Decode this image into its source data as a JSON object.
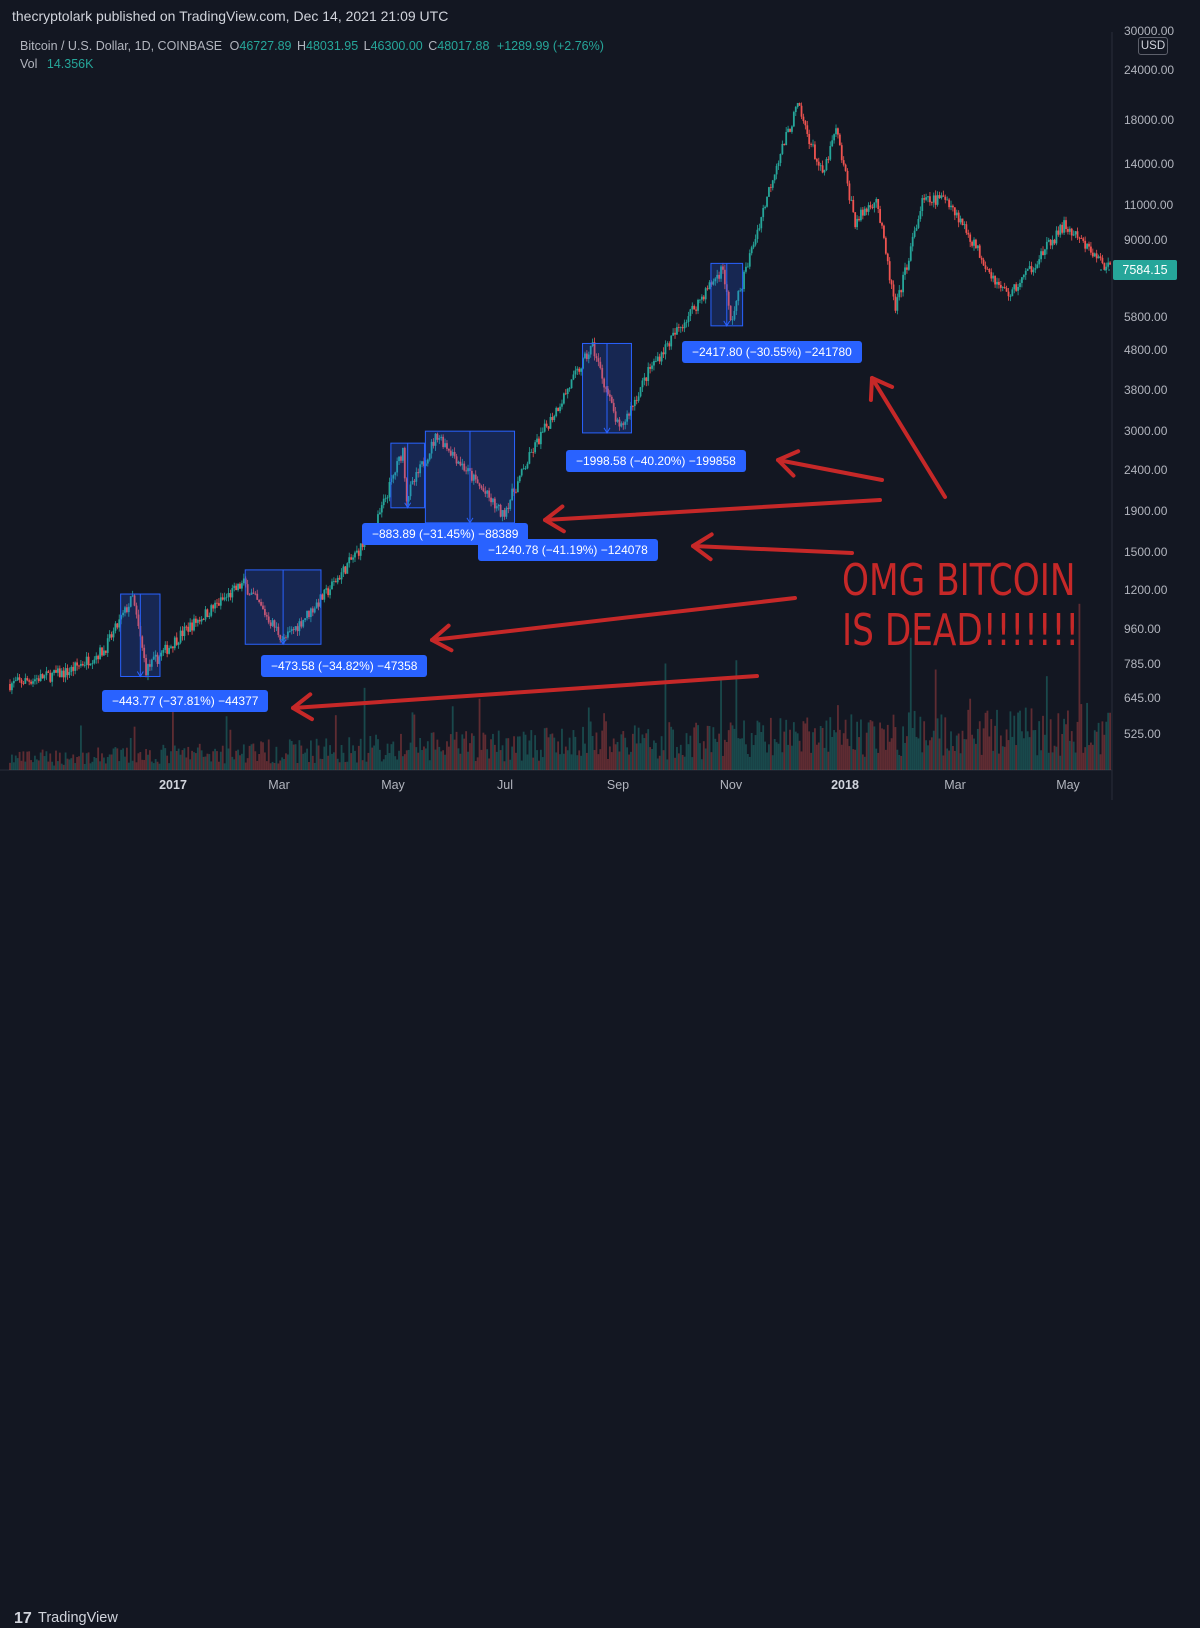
{
  "publisher": "thecryptolark published on TradingView.com, Dec 14, 2021 21:09 UTC",
  "legend": {
    "symbol": "Bitcoin / U.S. Dollar, 1D, COINBASE",
    "o_label": "O",
    "o": "46727.89",
    "h_label": "H",
    "h": "48031.95",
    "l_label": "L",
    "l": "46300.00",
    "c_label": "C",
    "c": "48017.88",
    "change": "+1289.99 (+2.76%)",
    "vol_label": "Vol",
    "vol": "14.356K"
  },
  "currency": "USD",
  "last_price": "7584.15",
  "annotation": {
    "line1": "OMG BITCOIN",
    "line2": "IS DEAD!!!!!!!"
  },
  "footer": {
    "logo": "17",
    "brand": "TradingView"
  },
  "colors": {
    "background": "#131722",
    "up": "#26a69a",
    "down": "#ef5350",
    "measure": "#2962ff",
    "annotation": "#c62828"
  },
  "chart_data": {
    "type": "candlestick",
    "symbol": "Bitcoin / U.S. Dollar",
    "interval": "1D",
    "exchange": "COINBASE",
    "y_scale": "log",
    "x_labels": [
      "2017",
      "Mar",
      "May",
      "Jul",
      "Sep",
      "Nov",
      "2018",
      "Mar",
      "May"
    ],
    "y_ticks": [
      "30000.00",
      "24000.00",
      "18000.00",
      "14000.00",
      "11000.00",
      "9000.00",
      "5800.00",
      "4800.00",
      "3800.00",
      "3000.00",
      "2400.00",
      "1900.00",
      "1500.00",
      "1200.00",
      "960.00",
      "785.00",
      "645.00",
      "525.00"
    ],
    "price_path": [
      [
        "2016-11-01",
        700
      ],
      [
        "2016-12-01",
        750
      ],
      [
        "2016-12-20",
        850
      ],
      [
        "2017-01-04",
        1150
      ],
      [
        "2017-01-11",
        760
      ],
      [
        "2017-02-01",
        960
      ],
      [
        "2017-03-03",
        1250
      ],
      [
        "2017-03-24",
        900
      ],
      [
        "2017-04-15",
        1180
      ],
      [
        "2017-05-10",
        1700
      ],
      [
        "2017-05-25",
        2700
      ],
      [
        "2017-05-27",
        2050
      ],
      [
        "2017-06-12",
        2950
      ],
      [
        "2017-07-16",
        1850
      ],
      [
        "2017-08-01",
        2700
      ],
      [
        "2017-09-01",
        4900
      ],
      [
        "2017-09-15",
        3000
      ],
      [
        "2017-10-01",
        4300
      ],
      [
        "2017-11-08",
        7700
      ],
      [
        "2017-11-12",
        5600
      ],
      [
        "2017-12-06",
        14000
      ],
      [
        "2017-12-17",
        19500
      ],
      [
        "2017-12-30",
        13000
      ],
      [
        "2018-01-06",
        17000
      ],
      [
        "2018-01-16",
        10000
      ],
      [
        "2018-01-27",
        11500
      ],
      [
        "2018-02-06",
        6000
      ],
      [
        "2018-02-20",
        11200
      ],
      [
        "2018-03-05",
        11500
      ],
      [
        "2018-04-01",
        6900
      ],
      [
        "2018-04-07",
        6600
      ],
      [
        "2018-05-05",
        9800
      ],
      [
        "2018-05-29",
        7584.15
      ]
    ],
    "measurements": [
      {
        "label": "−443.77 (−37.81%) −44377",
        "from": [
          "2017-01-04",
          1175
        ],
        "to": [
          "2017-01-12",
          731
        ]
      },
      {
        "label": "−473.58 (−34.82%) −47358",
        "from": [
          "2017-03-10",
          1350
        ],
        "to": [
          "2017-04-06",
          880
        ]
      },
      {
        "label": "−883.89 (−31.45%) −88389",
        "from": [
          "2017-05-25",
          2800
        ],
        "to": [
          "2017-05-30",
          1930
        ]
      },
      {
        "label": "−1240.78 (−41.19%) −124078",
        "from": [
          "2017-06-12",
          3000
        ],
        "to": [
          "2017-07-16",
          1770
        ]
      },
      {
        "label": "−1998.58 (−40.20%) −199858",
        "from": [
          "2017-09-02",
          4970
        ],
        "to": [
          "2017-09-15",
          2970
        ]
      },
      {
        "label": "−2417.80 (−30.55%) −241780",
        "from": [
          "2017-11-08",
          7880
        ],
        "to": [
          "2017-11-12",
          5500
        ]
      }
    ]
  }
}
